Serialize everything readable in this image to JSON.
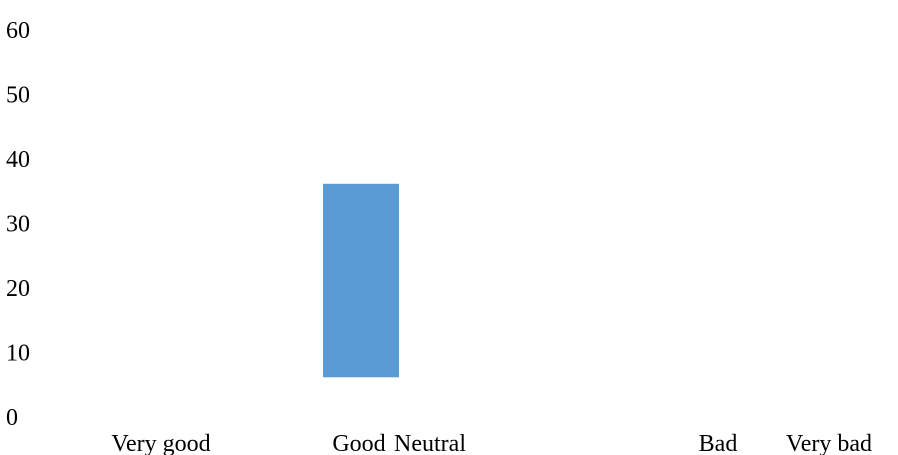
{
  "chart_data": {
    "type": "bar",
    "title": "",
    "xlabel": "",
    "ylabel": "",
    "categories": [
      "Very good",
      "Good",
      "Neutral",
      "Bad",
      "Very bad"
    ],
    "bars": [
      {
        "category": "Good",
        "y_start": 6,
        "y_end": 36
      }
    ],
    "ylim": [
      0,
      60
    ],
    "yticks": [
      "0",
      "10",
      "20",
      "30",
      "40",
      "50",
      "60"
    ],
    "grid": false,
    "legend": "none",
    "colors": {
      "bar": "#5B9BD5",
      "text": "#000000"
    }
  }
}
